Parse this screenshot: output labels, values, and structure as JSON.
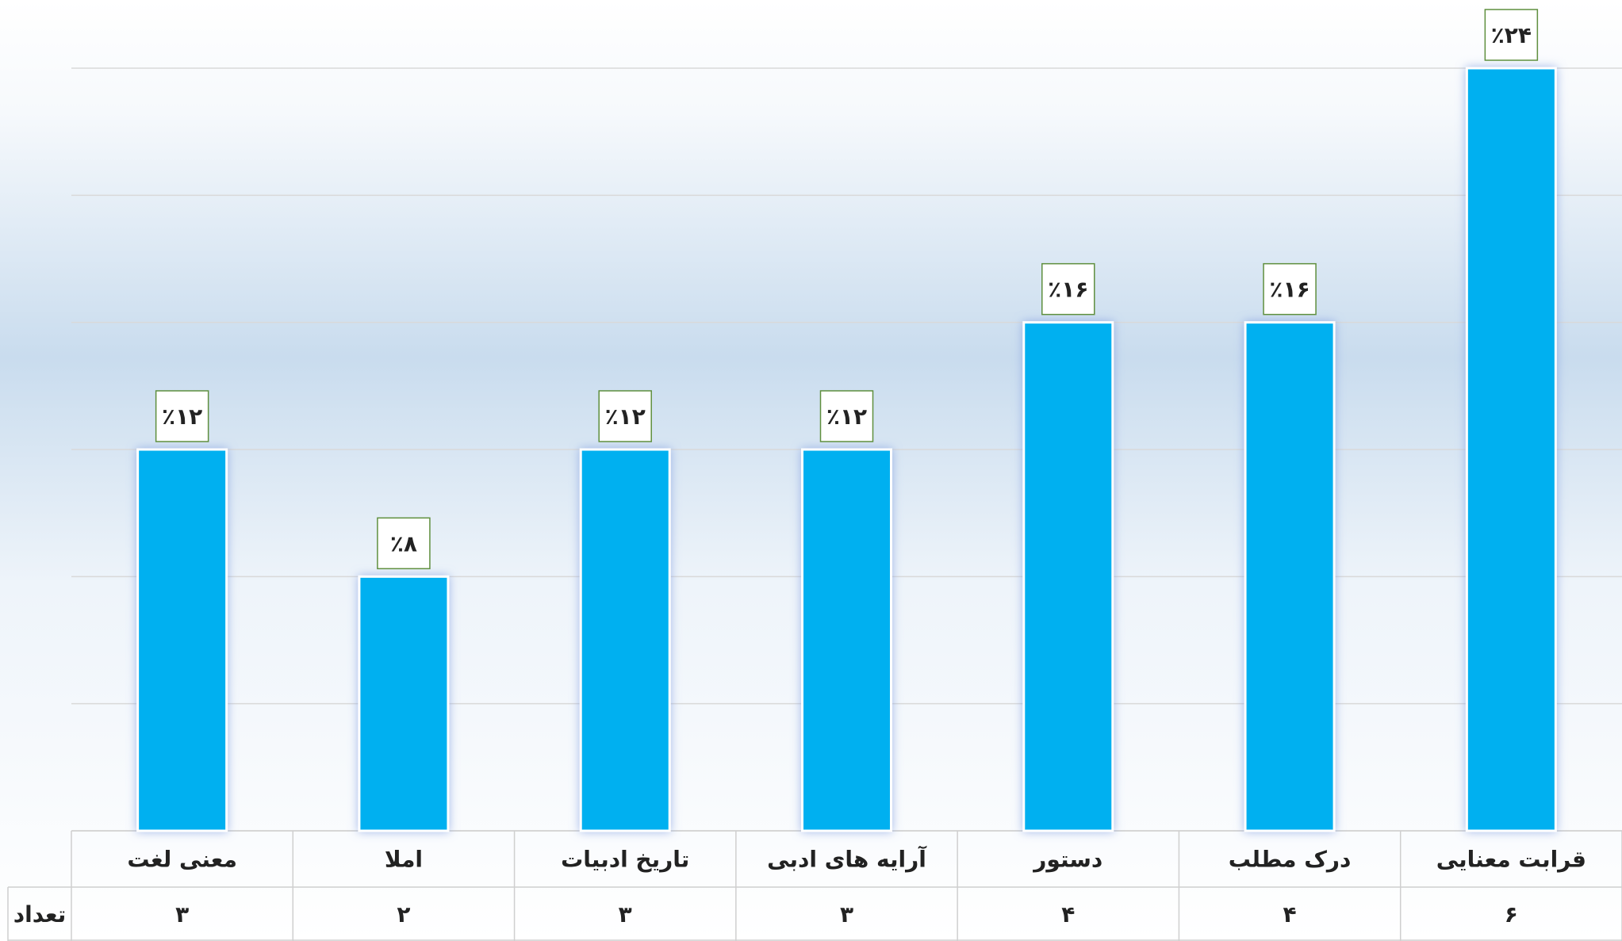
{
  "chart_data": {
    "type": "bar",
    "categories": [
      "معنی لغت",
      "املا",
      "تاریخ ادبیات",
      "آرایه های ادبی",
      "دستور",
      "درک مطلب",
      "قرابت معنایی"
    ],
    "values": [
      12,
      8,
      12,
      12,
      16,
      16,
      24
    ],
    "value_labels": [
      "٪۱۲",
      "٪۸",
      "٪۱۲",
      "٪۱۲",
      "٪۱۶",
      "٪۱۶",
      "٪۲۴"
    ],
    "color": "#00b0f0",
    "ylim": [
      0,
      24
    ],
    "yticks": [
      0,
      4,
      8,
      12,
      16,
      20,
      24
    ],
    "grid": true,
    "table_row": {
      "label": "تعداد",
      "values": [
        3,
        2,
        3,
        3,
        4,
        4,
        6
      ],
      "value_labels": [
        "۳",
        "۲",
        "۳",
        "۳",
        "۴",
        "۴",
        "۶"
      ]
    }
  }
}
